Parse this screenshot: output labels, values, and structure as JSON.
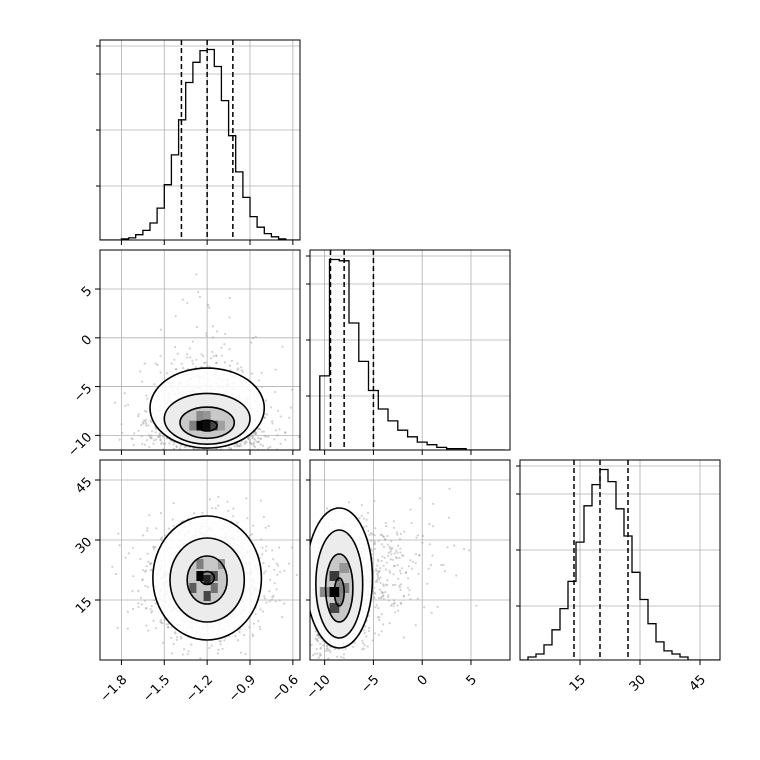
{
  "chart_data": {
    "type": "corner",
    "grid": true,
    "parameters": [
      {
        "ticks": [
          -1.8,
          -1.5,
          -1.2,
          -0.9,
          -0.6
        ],
        "tick_labels": [
          "−1.8",
          "−1.5",
          "−1.2",
          "−0.9",
          "−0.6"
        ],
        "range": [
          -1.95,
          -0.55
        ],
        "quantiles": [
          -1.38,
          -1.2,
          -1.02
        ],
        "histogram": {
          "bin_edges": [
            -1.95,
            -1.9,
            -1.85,
            -1.8,
            -1.75,
            -1.7,
            -1.65,
            -1.6,
            -1.55,
            -1.5,
            -1.45,
            -1.4,
            -1.35,
            -1.3,
            -1.25,
            -1.2,
            -1.15,
            -1.1,
            -1.05,
            -1.0,
            -0.95,
            -0.9,
            -0.85,
            -0.8,
            -0.75,
            -0.7,
            -0.65,
            -0.6,
            -0.55
          ],
          "counts": [
            0,
            0,
            0,
            1,
            2,
            5,
            9,
            16,
            30,
            52,
            80,
            113,
            148,
            167,
            178,
            179,
            163,
            131,
            98,
            64,
            40,
            22,
            12,
            6,
            3,
            1,
            0,
            0
          ]
        }
      },
      {
        "ticks": [
          -10,
          -5,
          0,
          5
        ],
        "tick_labels": [
          "−10",
          "−5",
          "0",
          "5"
        ],
        "range": [
          -11.5,
          9
        ],
        "quantiles": [
          -9.4,
          -8.0,
          -5.0
        ],
        "histogram": {
          "bin_edges": [
            -11.5,
            -10.5,
            -9.5,
            -8.5,
            -7.5,
            -6.5,
            -5.5,
            -4.5,
            -3.5,
            -2.5,
            -1.5,
            -0.5,
            0.5,
            1.5,
            2.5,
            3.5,
            4.5,
            5.5,
            6.5,
            7.5,
            8.5
          ],
          "counts": [
            0,
            56,
            144,
            143,
            96,
            67,
            45,
            31,
            22,
            15,
            10,
            6,
            4,
            2,
            1,
            1,
            0,
            0,
            0,
            0
          ]
        }
      },
      {
        "ticks": [
          15,
          30,
          45
        ],
        "tick_labels": [
          "15",
          "30",
          "45"
        ],
        "range": [
          0,
          50
        ],
        "quantiles": [
          13.5,
          20.0,
          27.0
        ],
        "histogram": {
          "bin_edges": [
            0,
            2,
            4,
            6,
            8,
            10,
            12,
            14,
            16,
            18,
            20,
            22,
            24,
            26,
            28,
            30,
            32,
            34,
            36,
            38,
            40,
            42,
            44,
            46,
            48,
            50
          ],
          "counts": [
            0,
            1,
            2,
            5,
            10,
            17,
            26,
            39,
            51,
            58,
            63,
            59,
            50,
            41,
            29,
            20,
            12,
            6,
            3,
            2,
            1,
            0,
            0,
            0,
            0
          ]
        }
      }
    ],
    "pairs": [
      {
        "x_param": 0,
        "y_param": 1,
        "center": [
          -1.2,
          -9.0
        ],
        "sigma": [
          0.18,
          2.4
        ],
        "levels": [
          {
            "rx": 0.07,
            "ry": 0.55,
            "cy": -9.0
          },
          {
            "rx": 0.19,
            "ry": 1.6,
            "cy": -8.7
          },
          {
            "rx": 0.3,
            "ry": 2.6,
            "cy": -8.3
          },
          {
            "rx": 0.4,
            "ry": 4.1,
            "cy": -7.2
          }
        ],
        "density_cells": [
          {
            "x": -1.25,
            "y": -9.0,
            "v": 1.0
          },
          {
            "x": -1.2,
            "y": -9.0,
            "v": 0.95
          },
          {
            "x": -1.15,
            "y": -9.0,
            "v": 0.7
          },
          {
            "x": -1.3,
            "y": -9.0,
            "v": 0.45
          },
          {
            "x": -1.25,
            "y": -8.0,
            "v": 0.4
          },
          {
            "x": -1.2,
            "y": -8.0,
            "v": 0.35
          },
          {
            "x": -1.1,
            "y": -9.0,
            "v": 0.3
          }
        ]
      },
      {
        "x_param": 0,
        "y_param": 2,
        "center": [
          -1.2,
          20.0
        ],
        "sigma": [
          0.18,
          7.0
        ],
        "levels": [
          {
            "rx": 0.05,
            "ry": 1.6,
            "cy": 20.5
          },
          {
            "rx": 0.14,
            "ry": 6.0,
            "cy": 20.0
          },
          {
            "rx": 0.26,
            "ry": 10.5,
            "cy": 20.0
          },
          {
            "rx": 0.38,
            "ry": 15.5,
            "cy": 20.5
          }
        ],
        "density_cells": [
          {
            "x": -1.25,
            "y": 21.0,
            "v": 1.0
          },
          {
            "x": -1.2,
            "y": 20.0,
            "v": 0.85
          },
          {
            "x": -1.15,
            "y": 21.0,
            "v": 0.65
          },
          {
            "x": -1.3,
            "y": 18.0,
            "v": 0.6
          },
          {
            "x": -1.2,
            "y": 16.0,
            "v": 0.7
          },
          {
            "x": -1.15,
            "y": 18.0,
            "v": 0.5
          },
          {
            "x": -1.25,
            "y": 24.0,
            "v": 0.45
          },
          {
            "x": -1.1,
            "y": 24.0,
            "v": 0.35
          }
        ]
      },
      {
        "x_param": 1,
        "y_param": 2,
        "center": [
          -8.5,
          18.0
        ],
        "sigma": [
          2.4,
          7.0
        ],
        "levels": [
          {
            "rx": 0.5,
            "ry": 3.5,
            "cy": 17.0
          },
          {
            "rx": 1.4,
            "ry": 8.5,
            "cy": 18.0
          },
          {
            "rx": 2.4,
            "ry": 13.5,
            "cy": 19.0
          },
          {
            "rx": 3.4,
            "ry": 17.5,
            "cy": 20.5
          }
        ],
        "density_cells": [
          {
            "x": -9.0,
            "y": 17.0,
            "v": 1.0
          },
          {
            "x": -9.0,
            "y": 21.0,
            "v": 0.75
          },
          {
            "x": -9.0,
            "y": 13.0,
            "v": 0.7
          },
          {
            "x": -8.0,
            "y": 18.0,
            "v": 0.45
          },
          {
            "x": -8.0,
            "y": 23.0,
            "v": 0.35
          },
          {
            "x": -10.0,
            "y": 17.0,
            "v": 0.4
          }
        ]
      }
    ]
  }
}
